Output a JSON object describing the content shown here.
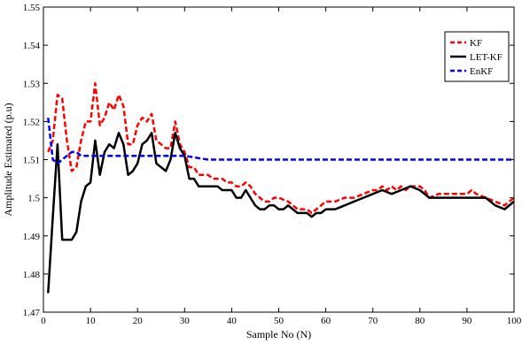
{
  "chart_data": {
    "type": "line",
    "xlabel": "Sample No (N)",
    "ylabel": "Amplitude Estimated (p.u)",
    "xlim": [
      0,
      100
    ],
    "ylim": [
      1.47,
      1.55
    ],
    "xticks": [
      0,
      10,
      20,
      30,
      40,
      50,
      60,
      70,
      80,
      90,
      100
    ],
    "yticks": [
      1.47,
      1.48,
      1.49,
      1.5,
      1.51,
      1.52,
      1.53,
      1.54,
      1.55
    ],
    "xtick_labels": [
      "0",
      "10",
      "20",
      "30",
      "40",
      "50",
      "60",
      "70",
      "80",
      "90",
      "100"
    ],
    "ytick_labels": [
      "1.47",
      "1.48",
      "1.49",
      "1.5",
      "1.51",
      "1.52",
      "1.53",
      "1.54",
      "1.55"
    ],
    "grid": false,
    "legend_position": "top-right",
    "series": [
      {
        "name": "KF",
        "color": "#ff0000",
        "style": "dashed",
        "x": [
          1,
          2,
          3,
          4,
          5,
          6,
          7,
          8,
          9,
          10,
          11,
          12,
          13,
          14,
          15,
          16,
          17,
          18,
          19,
          20,
          21,
          22,
          23,
          24,
          25,
          26,
          27,
          28,
          29,
          30,
          31,
          32,
          33,
          34,
          35,
          36,
          37,
          38,
          39,
          40,
          41,
          42,
          43,
          44,
          45,
          46,
          47,
          48,
          49,
          50,
          52,
          54,
          55,
          56,
          57,
          58,
          60,
          62,
          64,
          66,
          68,
          70,
          71,
          72,
          73,
          74,
          75,
          76,
          77,
          78,
          79,
          80,
          81,
          82,
          84,
          86,
          88,
          90,
          91,
          92,
          94,
          96,
          98,
          100
        ],
        "y": [
          1.512,
          1.515,
          1.527,
          1.526,
          1.515,
          1.507,
          1.508,
          1.515,
          1.52,
          1.52,
          1.53,
          1.519,
          1.521,
          1.525,
          1.523,
          1.527,
          1.524,
          1.514,
          1.514,
          1.519,
          1.521,
          1.52,
          1.522,
          1.515,
          1.514,
          1.513,
          1.513,
          1.52,
          1.514,
          1.512,
          1.508,
          1.508,
          1.506,
          1.506,
          1.506,
          1.505,
          1.505,
          1.505,
          1.504,
          1.504,
          1.503,
          1.503,
          1.504,
          1.503,
          1.501,
          1.5,
          1.499,
          1.499,
          1.5,
          1.5,
          1.499,
          1.497,
          1.497,
          1.497,
          1.496,
          1.497,
          1.499,
          1.499,
          1.5,
          1.5,
          1.501,
          1.502,
          1.502,
          1.503,
          1.502,
          1.503,
          1.502,
          1.503,
          1.502,
          1.503,
          1.503,
          1.503,
          1.502,
          1.5,
          1.501,
          1.501,
          1.501,
          1.501,
          1.502,
          1.501,
          1.5,
          1.499,
          1.498,
          1.5
        ]
      },
      {
        "name": "LET-KF",
        "color": "#000000",
        "style": "solid",
        "x": [
          1,
          2,
          3,
          4,
          5,
          6,
          7,
          8,
          9,
          10,
          11,
          12,
          13,
          14,
          15,
          16,
          17,
          18,
          19,
          20,
          21,
          22,
          23,
          24,
          25,
          26,
          27,
          28,
          29,
          30,
          31,
          32,
          33,
          34,
          35,
          36,
          37,
          38,
          39,
          40,
          41,
          42,
          43,
          44,
          45,
          46,
          47,
          48,
          49,
          50,
          51,
          52,
          53,
          54,
          55,
          56,
          57,
          58,
          59,
          60,
          62,
          64,
          66,
          68,
          70,
          72,
          74,
          76,
          78,
          80,
          82,
          84,
          86,
          88,
          90,
          92,
          94,
          96,
          98,
          100
        ],
        "y": [
          1.475,
          1.495,
          1.514,
          1.489,
          1.489,
          1.489,
          1.491,
          1.499,
          1.503,
          1.504,
          1.515,
          1.506,
          1.512,
          1.514,
          1.513,
          1.517,
          1.514,
          1.506,
          1.507,
          1.509,
          1.514,
          1.515,
          1.517,
          1.509,
          1.508,
          1.507,
          1.51,
          1.517,
          1.513,
          1.511,
          1.505,
          1.505,
          1.503,
          1.503,
          1.503,
          1.503,
          1.503,
          1.502,
          1.502,
          1.502,
          1.5,
          1.5,
          1.502,
          1.5,
          1.498,
          1.497,
          1.497,
          1.498,
          1.498,
          1.497,
          1.497,
          1.498,
          1.497,
          1.496,
          1.496,
          1.496,
          1.495,
          1.496,
          1.496,
          1.497,
          1.497,
          1.498,
          1.499,
          1.5,
          1.501,
          1.502,
          1.501,
          1.502,
          1.503,
          1.502,
          1.5,
          1.5,
          1.5,
          1.5,
          1.5,
          1.5,
          1.5,
          1.498,
          1.497,
          1.499
        ]
      },
      {
        "name": "EnKF",
        "color": "#0000ff",
        "style": "dashed",
        "x": [
          1,
          2,
          3,
          4,
          5,
          6,
          7,
          8,
          9,
          10,
          12,
          14,
          16,
          18,
          20,
          25,
          30,
          35,
          40,
          50,
          60,
          70,
          80,
          90,
          100
        ],
        "y": [
          1.521,
          1.51,
          1.509,
          1.51,
          1.511,
          1.512,
          1.512,
          1.511,
          1.511,
          1.511,
          1.511,
          1.511,
          1.511,
          1.511,
          1.511,
          1.511,
          1.511,
          1.51,
          1.51,
          1.51,
          1.51,
          1.51,
          1.51,
          1.51,
          1.51
        ]
      }
    ]
  }
}
